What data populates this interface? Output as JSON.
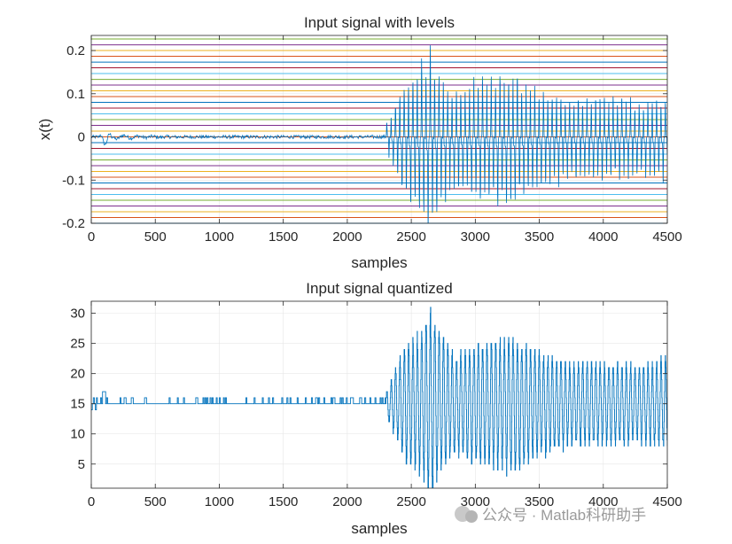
{
  "chart_data": [
    {
      "type": "line",
      "title": "Input signal with levels",
      "xlabel": "samples",
      "ylabel": "x(t)",
      "xlim": [
        0,
        4500
      ],
      "ylim": [
        -0.2,
        0.235
      ],
      "xticks": [
        0,
        500,
        1000,
        1500,
        2000,
        2500,
        3000,
        3500,
        4000,
        4500
      ],
      "xtick_labels": [
        "0",
        "500",
        "1000",
        "1500",
        "2000",
        "2500",
        "3000",
        "3500",
        "4000",
        "4500"
      ],
      "yticks": [
        -0.2,
        -0.1,
        0,
        0.1,
        0.2
      ],
      "ytick_labels": [
        "-0.2",
        "-0.1",
        "0",
        "0.1",
        "0.2"
      ],
      "grid": true,
      "series": [
        {
          "name": "x(t)",
          "color": "#0072BD",
          "segments": [
            {
              "x_range": [
                0,
                2300
              ],
              "amplitude": 0.004,
              "note": "quiet low-level noise near 0, small bump ~0.02 at x≈100"
            },
            {
              "x_range": [
                2300,
                4500
              ],
              "amplitude_envelope": [
                [
                  2300,
                  0.03
                ],
                [
                  2450,
                  0.14
                ],
                [
                  2560,
                  0.17
                ],
                [
                  2650,
                  0.235
                ],
                [
                  2720,
                  0.16
                ],
                [
                  2850,
                  0.12
                ],
                [
                  2950,
                  0.14
                ],
                [
                  3250,
                  0.16
                ],
                [
                  3450,
                  0.13
                ],
                [
                  3700,
                  0.1
                ],
                [
                  4000,
                  0.1
                ],
                [
                  4300,
                  0.09
                ],
                [
                  4500,
                  0.1
                ]
              ]
            }
          ]
        }
      ],
      "levels": [
        -0.2,
        -0.1867,
        -0.1733,
        -0.16,
        -0.1467,
        -0.1333,
        -0.12,
        -0.1067,
        -0.0933,
        -0.08,
        -0.0667,
        -0.0533,
        -0.04,
        -0.0267,
        -0.0133,
        0,
        0.0133,
        0.0267,
        0.04,
        0.0533,
        0.0667,
        0.08,
        0.0933,
        0.1067,
        0.12,
        0.1333,
        0.1467,
        0.16,
        0.1733,
        0.1867,
        0.2,
        0.2133,
        0.2267,
        0.24
      ],
      "level_colors": [
        "#0072BD",
        "#D95319",
        "#EDB120",
        "#7E2F8E",
        "#77AC30",
        "#4DBEEE",
        "#A2142F"
      ]
    },
    {
      "type": "line",
      "title": "Input signal quantized",
      "xlabel": "samples",
      "ylabel": "",
      "xlim": [
        0,
        4500
      ],
      "ylim": [
        1,
        32
      ],
      "xticks": [
        0,
        500,
        1000,
        1500,
        2000,
        2500,
        3000,
        3500,
        4000,
        4500
      ],
      "xtick_labels": [
        "0",
        "500",
        "1000",
        "1500",
        "2000",
        "2500",
        "3000",
        "3500",
        "4000",
        "4500"
      ],
      "yticks": [
        5,
        10,
        15,
        20,
        25,
        30
      ],
      "ytick_labels": [
        "5",
        "10",
        "15",
        "20",
        "25",
        "30"
      ],
      "grid": true,
      "series": [
        {
          "name": "quantized",
          "color": "#0072BD",
          "segments": [
            {
              "x_range": [
                0,
                2300
              ],
              "baseline": 15,
              "levels_visited": [
                14,
                15,
                16,
                17
              ]
            },
            {
              "x_range": [
                2300,
                4500
              ],
              "center": 15,
              "amplitude_envelope": [
                [
                  2300,
                  2
                ],
                [
                  2450,
                  10
                ],
                [
                  2560,
                  12
                ],
                [
                  2650,
                  17
                ],
                [
                  2720,
                  12
                ],
                [
                  2850,
                  9
                ],
                [
                  2950,
                  10
                ],
                [
                  3250,
                  12
                ],
                [
                  3450,
                  10
                ],
                [
                  3700,
                  7.5
                ],
                [
                  4000,
                  7.5
                ],
                [
                  4300,
                  7
                ],
                [
                  4500,
                  8
                ]
              ]
            }
          ]
        }
      ]
    }
  ],
  "watermark": {
    "text": "公众号 · Matlab科研助手"
  }
}
